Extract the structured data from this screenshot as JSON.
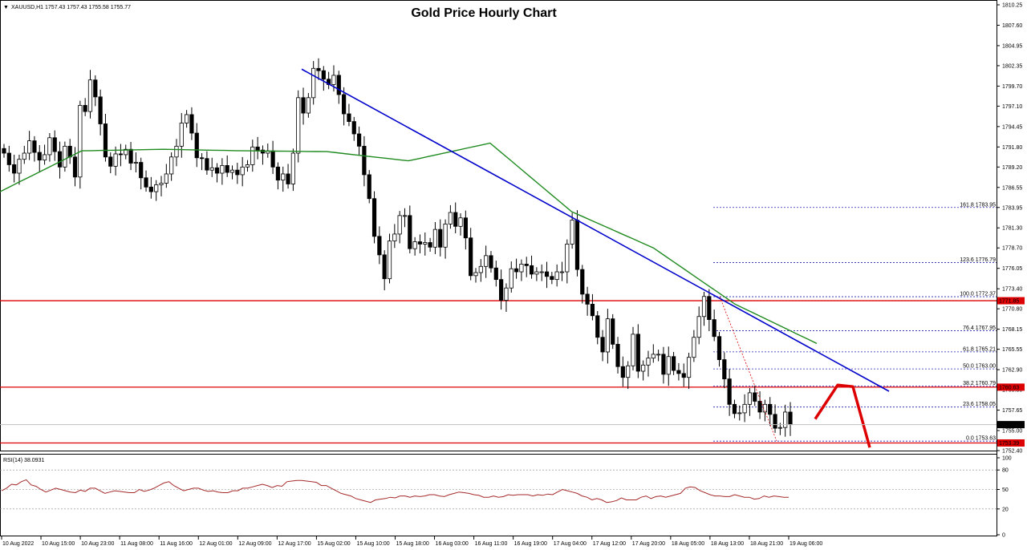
{
  "chart_data": {
    "type": "candlestick",
    "title": "Gold Price Hourly Chart",
    "symbol_info": "XAUUSD,H1  1757.43 1757.43 1755.58 1755.77",
    "current_price": 1755.77,
    "ylim": [
      1752.4,
      1810.25
    ],
    "y_ticks": [
      1810.25,
      1807.6,
      1804.95,
      1802.35,
      1799.7,
      1797.1,
      1794.45,
      1791.8,
      1789.2,
      1786.55,
      1783.95,
      1781.3,
      1778.7,
      1776.05,
      1773.4,
      1770.8,
      1768.15,
      1765.55,
      1762.9,
      1760.3,
      1757.65,
      1755.0,
      1752.4
    ],
    "x_labels": [
      "10 Aug 2022",
      "10 Aug 15:00",
      "10 Aug 23:00",
      "11 Aug 08:00",
      "11 Aug 16:00",
      "12 Aug 01:00",
      "12 Aug 09:00",
      "12 Aug 17:00",
      "15 Aug 02:00",
      "15 Aug 10:00",
      "15 Aug 18:00",
      "16 Aug 03:00",
      "16 Aug 11:00",
      "16 Aug 19:00",
      "17 Aug 04:00",
      "17 Aug 12:00",
      "17 Aug 20:00",
      "18 Aug 05:00",
      "18 Aug 13:00",
      "18 Aug 21:00",
      "19 Aug 06:00"
    ],
    "closes": [
      1791.0,
      1789.5,
      1788.4,
      1790.2,
      1791.0,
      1792.6,
      1791.1,
      1790.1,
      1790.8,
      1793.0,
      1791.2,
      1789.2,
      1791.9,
      1790.5,
      1787.9,
      1797.2,
      1796.4,
      1800.5,
      1798.3,
      1794.8,
      1790.5,
      1789.3,
      1790.9,
      1790.8,
      1791.5,
      1789.7,
      1789.8,
      1787.8,
      1786.6,
      1786.0,
      1786.9,
      1787.1,
      1788.3,
      1790.5,
      1791.9,
      1794.9,
      1796.0,
      1793.6,
      1790.4,
      1790.3,
      1788.8,
      1789.1,
      1788.4,
      1789.4,
      1788.5,
      1788.8,
      1788.2,
      1789.2,
      1789.5,
      1791.8,
      1791.4,
      1791.0,
      1791.3,
      1789.2,
      1787.5,
      1788.3,
      1787.0,
      1791.0,
      1798.2,
      1796.2,
      1798.2,
      1802.0,
      1801.7,
      1800.6,
      1799.9,
      1801.1,
      1798.6,
      1796.1,
      1795.1,
      1793.5,
      1791.9,
      1788.2,
      1785.1,
      1780.2,
      1777.8,
      1774.7,
      1779.6,
      1780.5,
      1782.9,
      1782.9,
      1778.6,
      1779.5,
      1779.2,
      1779.4,
      1778.8,
      1781.1,
      1778.8,
      1781.8,
      1783.3,
      1781.5,
      1782.6,
      1780.0,
      1775.1,
      1775.5,
      1776.3,
      1777.7,
      1776.1,
      1774.6,
      1771.9,
      1773.5,
      1776.0,
      1775.6,
      1776.6,
      1776.4,
      1775.3,
      1775.6,
      1775.6,
      1775.0,
      1774.6,
      1775.6,
      1775.6,
      1779.2,
      1782.3,
      1775.9,
      1772.7,
      1771.4,
      1769.9,
      1767.1,
      1765.2,
      1769.5,
      1766.2,
      1763.3,
      1761.9,
      1763.4,
      1767.5,
      1762.7,
      1763.5,
      1764.4,
      1764.9,
      1764.9,
      1762.3,
      1764.6,
      1762.8,
      1762.4,
      1761.9,
      1764.5,
      1767.1,
      1769.8,
      1772.4,
      1769.4,
      1767.2,
      1764.2,
      1761.7,
      1758.4,
      1757.2,
      1757.3,
      1758.4,
      1759.9,
      1758.8,
      1757.4,
      1758.4,
      1757.1,
      1755.3,
      1755.4,
      1757.4,
      1755.8
    ],
    "ma_line": {
      "color": "#1f8a1f",
      "values": [
        1786.0,
        1791.3,
        1791.5,
        1791.3,
        1791.2,
        1790.0,
        1792.3,
        1783.4,
        1778.7,
        1771.4,
        1766.3
      ]
    },
    "trend_line": {
      "color": "#0000cc",
      "from": [
        1801.9
      ],
      "to": [
        1760.1
      ]
    },
    "horizontal_lines": [
      {
        "price": 1771.85,
        "label": "1771.85",
        "color": "#dd0000"
      },
      {
        "price": 1760.63,
        "label": "1760.63",
        "color": "#dd0000"
      },
      {
        "price": 1753.39,
        "label": "1753.39",
        "color": "#dd0000"
      }
    ],
    "fibonacci_levels": [
      {
        "label": "161.8",
        "price": 1783.95
      },
      {
        "label": "123.6",
        "price": 1776.79
      },
      {
        "label": "100.0",
        "price": 1772.37
      },
      {
        "label": "76.4",
        "price": 1767.95
      },
      {
        "label": "61.8",
        "price": 1765.21
      },
      {
        "label": "50.0",
        "price": 1763.0
      },
      {
        "label": "38.2",
        "price": 1760.79
      },
      {
        "label": "23.6",
        "price": 1758.05
      },
      {
        "label": "0.0",
        "price": 1753.63
      }
    ],
    "rsi": {
      "label": "RSI(14) 38.0931",
      "ylim": [
        0,
        100
      ],
      "ticks": [
        100,
        80,
        50,
        20,
        0
      ],
      "values": [
        48,
        52,
        58,
        57,
        62,
        65,
        57,
        55,
        50,
        46,
        49,
        52,
        50,
        48,
        46,
        45,
        49,
        47,
        52,
        52,
        48,
        44,
        46,
        48,
        47,
        46,
        45,
        45,
        50,
        47,
        49,
        52,
        56,
        60,
        62,
        56,
        52,
        48,
        50,
        52,
        52,
        49,
        47,
        48,
        46,
        45,
        45,
        48,
        48,
        52,
        52,
        54,
        56,
        58,
        56,
        53,
        56,
        55,
        62,
        63,
        64,
        64,
        63,
        62,
        61,
        56,
        56,
        52,
        48,
        44,
        42,
        40,
        36,
        34,
        32,
        30,
        34,
        35,
        36,
        38,
        37,
        40,
        40,
        38,
        40,
        39,
        40,
        42,
        42,
        40,
        39,
        42,
        44,
        46,
        45,
        44,
        42,
        41,
        38,
        38,
        40,
        38,
        39,
        42,
        41,
        42,
        42,
        42,
        40,
        42,
        41,
        43,
        42,
        46,
        50,
        48,
        46,
        44,
        40,
        38,
        34,
        36,
        34,
        30,
        31,
        33,
        37,
        34,
        34,
        34,
        38,
        40,
        36,
        39,
        40,
        38,
        40,
        42,
        44,
        52,
        54,
        53,
        48,
        45,
        42,
        40,
        40,
        39,
        39,
        42,
        40,
        38,
        38,
        35,
        36,
        40,
        38,
        40,
        39,
        38,
        38
      ]
    }
  }
}
